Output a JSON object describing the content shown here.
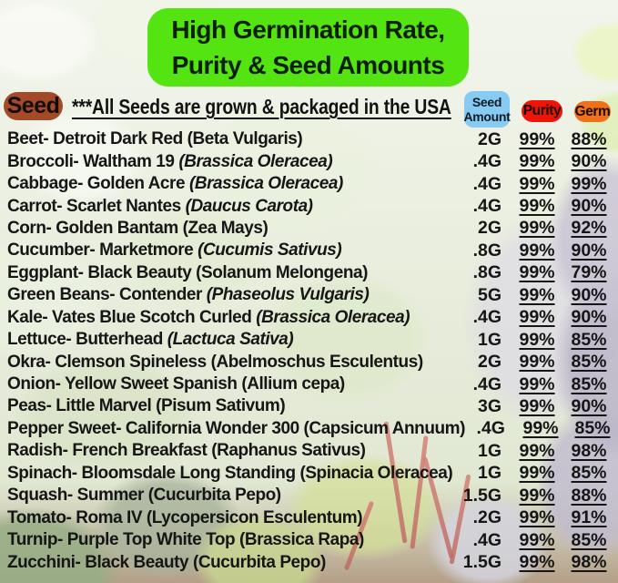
{
  "banner": {
    "line1": "High Germination Rate,",
    "line2": "Purity & Seed Amounts"
  },
  "header": {
    "seed_label": "Seed",
    "usa_note": "***All Seeds are grown & packaged in the USA",
    "amount_label_line1": "Seed",
    "amount_label_line2": "Amount",
    "purity_label": "Purity",
    "germ_label": "Germ"
  },
  "colors": {
    "banner-green": "#54e411",
    "seed-brown": "#a34a28",
    "amount-blue": "#87cbf2",
    "purity-red": "#ee1408",
    "germ-orange": "#f17018",
    "ink": "#161616"
  },
  "table": {
    "rows": [
      {
        "text": "Beet- Detroit Dark Red ",
        "species": "(Beta Vulgaris)",
        "italic": false,
        "amount": "2G",
        "purity": "99%",
        "germ": "88%"
      },
      {
        "text": "Broccoli- Waltham 19 ",
        "species": "(Brassica Oleracea)",
        "italic": true,
        "amount": ".4G",
        "purity": "99%",
        "germ": "90%"
      },
      {
        "text": "Cabbage- Golden Acre ",
        "species": "(Brassica Oleracea)",
        "italic": true,
        "amount": ".4G",
        "purity": "99%",
        "germ": "99%"
      },
      {
        "text": "Carrot- Scarlet Nantes ",
        "species": "(Daucus Carota)",
        "italic": true,
        "amount": ".4G",
        "purity": "99%",
        "germ": "90%"
      },
      {
        "text": "Corn- Golden Bantam ",
        "species": "(Zea Mays)",
        "italic": false,
        "amount": "2G",
        "purity": "99%",
        "germ": "92%"
      },
      {
        "text": "Cucumber- Marketmore ",
        "species": "(Cucumis Sativus)",
        "italic": true,
        "amount": ".8G",
        "purity": "99%",
        "germ": "90%"
      },
      {
        "text": "Eggplant- Black Beauty ",
        "species": "(Solanum Melongena)",
        "italic": false,
        "amount": ".8G",
        "purity": "99%",
        "germ": "79%"
      },
      {
        "text": "Green Beans- Contender ",
        "species": "(Phaseolus Vulgaris)",
        "italic": true,
        "amount": "5G",
        "purity": "99%",
        "germ": "90%"
      },
      {
        "text": "Kale- Vates Blue Scotch Curled ",
        "species": "(Brassica Oleracea)",
        "italic": true,
        "amount": ".4G",
        "purity": "99%",
        "germ": "90%"
      },
      {
        "text": "Lettuce- Butterhead ",
        "species": "(Lactuca Sativa)",
        "italic": true,
        "amount": "1G",
        "purity": "99%",
        "germ": "85%"
      },
      {
        "text": "Okra- Clemson Spineless ",
        "species": "(Abelmoschus Esculentus)",
        "italic": false,
        "amount": "2G",
        "purity": "99%",
        "germ": "85%"
      },
      {
        "text": "Onion- Yellow Sweet Spanish ",
        "species": "(Allium cepa)",
        "italic": false,
        "amount": ".4G",
        "purity": "99%",
        "germ": "85%"
      },
      {
        "text": "Peas- Little Marvel ",
        "species": "(Pisum Sativum)",
        "italic": false,
        "amount": "3G",
        "purity": "99%",
        "germ": "90%"
      },
      {
        "text": "Pepper Sweet- California Wonder 300 ",
        "species": "(Capsicum Annuum)",
        "italic": false,
        "amount": ".4G",
        "purity": "99%",
        "germ": "85%"
      },
      {
        "text": "Radish- French Breakfast ",
        "species": "(Raphanus Sativus)",
        "italic": false,
        "amount": "1G",
        "purity": "99%",
        "germ": "98%"
      },
      {
        "text": "Spinach- Bloomsdale Long Standing ",
        "species": "(Spinacia Oleracea)",
        "italic": false,
        "amount": "1G",
        "purity": "99%",
        "germ": "85%"
      },
      {
        "text": "Squash- Summer ",
        "species": "(Cucurbita Pepo)",
        "italic": false,
        "amount": "1.5G",
        "purity": "99%",
        "germ": "88%"
      },
      {
        "text": "Tomato- Roma IV ",
        "species": "(Lycopersicon Esculentum)",
        "italic": false,
        "amount": ".2G",
        "purity": "99%",
        "germ": "91%"
      },
      {
        "text": "Turnip- Purple Top White Top ",
        "species": "(Brassica Rapa)",
        "italic": false,
        "amount": ".4G",
        "purity": "99%",
        "germ": "85%"
      },
      {
        "text": "Zucchini- Black Beauty ",
        "species": "(Cucurbita Pepo)",
        "italic": false,
        "amount": "1.5G",
        "purity": "99%",
        "germ": "98%"
      }
    ]
  }
}
